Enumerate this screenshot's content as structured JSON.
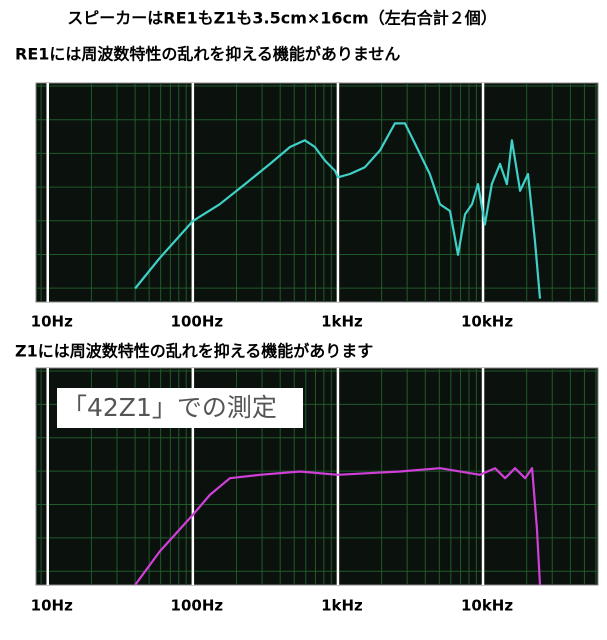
{
  "header": {
    "title": "スピーカーはRE1もZ1も3.5cm×16cm（左右合計２個）"
  },
  "chart_data": [
    {
      "type": "line",
      "title": "RE1には周波数特性の乱れを抑える機能がありません",
      "xscale": "log",
      "xlim": [
        8.3,
        62000
      ],
      "ylim": [
        -65,
        0
      ],
      "xticks": [
        {
          "value": 10,
          "label": "10Hz"
        },
        {
          "value": 100,
          "label": "100Hz"
        },
        {
          "value": 1000,
          "label": "1kHz"
        },
        {
          "value": 10000,
          "label": "10kHz"
        }
      ],
      "color": "#3fd0c8",
      "x": [
        40,
        59,
        100,
        153,
        229,
        340,
        467,
        592,
        694,
        813,
        953,
        1000,
        1210,
        1535,
        1950,
        2470,
        2900,
        3400,
        4300,
        5050,
        5920,
        6720,
        7510,
        8390,
        9240,
        10300,
        11500,
        13100,
        14600,
        15800,
        18000,
        20400,
        22800,
        24700
      ],
      "values": [
        -61,
        -52,
        -41,
        -36,
        -30,
        -24,
        -19,
        -17,
        -19,
        -23,
        -26,
        -28,
        -27,
        -25,
        -20,
        -12,
        -12,
        -18,
        -27,
        -36,
        -38,
        -51,
        -39,
        -36,
        -30,
        -42,
        -30,
        -24,
        -30,
        -17,
        -32,
        -27,
        -47,
        -64
      ]
    },
    {
      "type": "line",
      "title": "Z1には周波数特性の乱れを抑える機能があります",
      "annotation": "「42Z1」での測定",
      "xscale": "log",
      "xlim": [
        8.3,
        62000
      ],
      "ylim": [
        -65,
        0
      ],
      "xticks": [
        {
          "value": 10,
          "label": "10Hz"
        },
        {
          "value": 100,
          "label": "100Hz"
        },
        {
          "value": 1000,
          "label": "1kHz"
        },
        {
          "value": 10000,
          "label": "10kHz"
        }
      ],
      "color": "#d040d8",
      "x": [
        40,
        59,
        100,
        131,
        180,
        290,
        547,
        1000,
        2680,
        5050,
        9530,
        12100,
        14200,
        16600,
        19500,
        21800,
        23500,
        24700
      ],
      "values": [
        -65,
        -55,
        -44,
        -38,
        -33,
        -32,
        -31,
        -32,
        -31,
        -30,
        -32,
        -30,
        -33,
        -30,
        -33,
        -30,
        -48,
        -65
      ]
    }
  ]
}
